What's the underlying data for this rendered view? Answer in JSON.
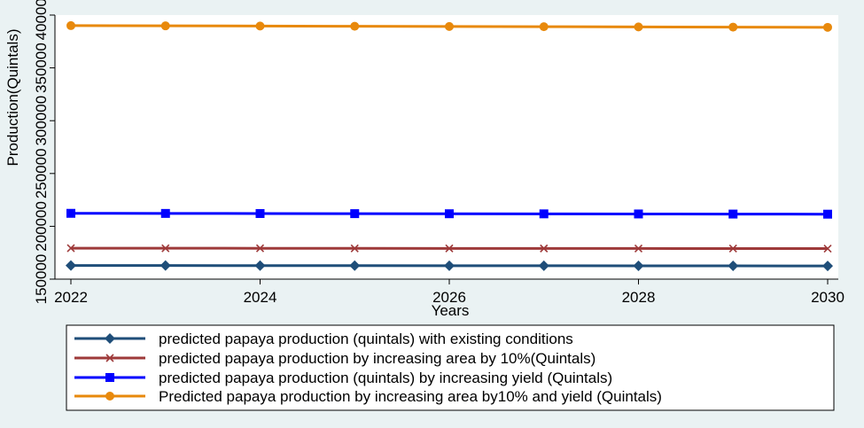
{
  "chart_data": {
    "type": "line",
    "xlabel": "Years",
    "ylabel": "Production(Quintals)",
    "x": [
      2022,
      2023,
      2024,
      2025,
      2026,
      2027,
      2028,
      2029,
      2030
    ],
    "xticks": [
      2022,
      2024,
      2026,
      2028,
      2030
    ],
    "xlim": [
      2022,
      2030
    ],
    "ylim": [
      150000,
      400000
    ],
    "yticks": [
      150000,
      200000,
      250000,
      300000,
      350000,
      400000
    ],
    "grid": false,
    "legend_position": "bottom",
    "series": [
      {
        "name": "predicted papaya production (quintals) with existing conditions",
        "color": "#1f4e79",
        "marker": "diamond",
        "values": [
          162900,
          162850,
          162800,
          162750,
          162700,
          162650,
          162600,
          162550,
          162500
        ]
      },
      {
        "name": "predicted papaya production by increasing area by 10%(Quintals)",
        "color": "#9e3a3a",
        "marker": "x",
        "values": [
          179300,
          179250,
          179200,
          179150,
          179100,
          179050,
          179000,
          178950,
          178900
        ]
      },
      {
        "name": "predicted papaya production (quintals) by increasing yield (Quintals)",
        "color": "#0000ff",
        "marker": "square",
        "values": [
          212300,
          212200,
          212100,
          212000,
          211900,
          211800,
          211700,
          211600,
          211500
        ]
      },
      {
        "name": "Predicted papaya production by increasing area by10% and yield (Quintals)",
        "color": "#e8890c",
        "marker": "circle",
        "values": [
          390000,
          389800,
          389600,
          389400,
          389200,
          389000,
          388800,
          388600,
          388400
        ]
      }
    ]
  }
}
